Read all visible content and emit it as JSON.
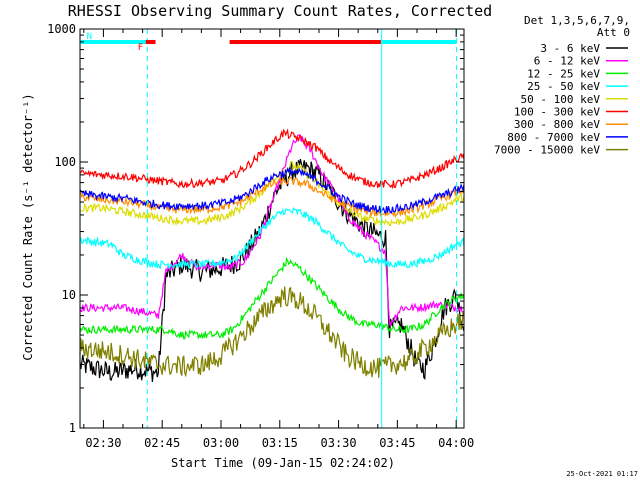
{
  "chart_data": {
    "type": "line",
    "title": "RHESSI Observing Summary Count Rates, Corrected",
    "xlabel": "Start Time (09-Jan-15 02:24:02)",
    "ylabel": "Corrected Count Rate (s⁻¹ detector⁻¹)",
    "yscale": "log",
    "xlim_minutes": [
      144.03,
      242.0
    ],
    "ylim": [
      1,
      1000
    ],
    "x_ticks": [
      {
        "t": 150,
        "label": "02:30"
      },
      {
        "t": 165,
        "label": "02:45"
      },
      {
        "t": 180,
        "label": "03:00"
      },
      {
        "t": 195,
        "label": "03:15"
      },
      {
        "t": 210,
        "label": "03:30"
      },
      {
        "t": 225,
        "label": "03:45"
      },
      {
        "t": 240,
        "label": "04:00"
      }
    ],
    "y_ticks": [
      {
        "v": 1,
        "label": "1"
      },
      {
        "v": 10,
        "label": "10"
      },
      {
        "v": 100,
        "label": "100"
      },
      {
        "v": 1000,
        "label": "1000"
      }
    ],
    "legend_header": [
      "Det 1,3,5,6,7,9,",
      "Att 0"
    ],
    "legend_position": "right",
    "series": [
      {
        "name": "3 - 6 keV",
        "color": "#000000",
        "points": [
          [
            144,
            3.0
          ],
          [
            152,
            2.6
          ],
          [
            158,
            2.8
          ],
          [
            164,
            2.6
          ],
          [
            166,
            14
          ],
          [
            170,
            17
          ],
          [
            175,
            15
          ],
          [
            180,
            16
          ],
          [
            185,
            18
          ],
          [
            190,
            30
          ],
          [
            194,
            60
          ],
          [
            198,
            85
          ],
          [
            202,
            90
          ],
          [
            205,
            80
          ],
          [
            208,
            60
          ],
          [
            212,
            42
          ],
          [
            216,
            33
          ],
          [
            220,
            28
          ],
          [
            222,
            27
          ],
          [
            223,
            5.5
          ],
          [
            226,
            6
          ],
          [
            230,
            3
          ],
          [
            232,
            2.8
          ],
          [
            234,
            4
          ],
          [
            237,
            8
          ],
          [
            240,
            10
          ],
          [
            242,
            5.5
          ]
        ]
      },
      {
        "name": "6 - 12 keV",
        "color": "#ff00ff",
        "points": [
          [
            144,
            8
          ],
          [
            150,
            8
          ],
          [
            155,
            8
          ],
          [
            160,
            7.5
          ],
          [
            164,
            7
          ],
          [
            166,
            15
          ],
          [
            170,
            20
          ],
          [
            174,
            16
          ],
          [
            178,
            17
          ],
          [
            182,
            16
          ],
          [
            186,
            18
          ],
          [
            190,
            28
          ],
          [
            194,
            60
          ],
          [
            198,
            130
          ],
          [
            200,
            155
          ],
          [
            203,
            120
          ],
          [
            206,
            80
          ],
          [
            209,
            60
          ],
          [
            212,
            40
          ],
          [
            216,
            30
          ],
          [
            220,
            24
          ],
          [
            222,
            21
          ],
          [
            223,
            6
          ],
          [
            226,
            8
          ],
          [
            230,
            8
          ],
          [
            235,
            8.5
          ],
          [
            240,
            8
          ],
          [
            242,
            8
          ]
        ]
      },
      {
        "name": "12 - 25 keV",
        "color": "#00ee00",
        "points": [
          [
            144,
            5.5
          ],
          [
            150,
            5.5
          ],
          [
            155,
            5.5
          ],
          [
            160,
            5.5
          ],
          [
            166,
            5.5
          ],
          [
            170,
            5
          ],
          [
            175,
            5
          ],
          [
            180,
            5
          ],
          [
            183,
            5.5
          ],
          [
            186,
            7
          ],
          [
            190,
            10
          ],
          [
            194,
            14
          ],
          [
            197,
            18
          ],
          [
            200,
            16
          ],
          [
            204,
            12
          ],
          [
            208,
            9
          ],
          [
            212,
            7
          ],
          [
            216,
            6
          ],
          [
            220,
            6
          ],
          [
            224,
            5.5
          ],
          [
            228,
            5.5
          ],
          [
            232,
            6
          ],
          [
            236,
            8
          ],
          [
            240,
            9.5
          ],
          [
            242,
            10
          ]
        ]
      },
      {
        "name": "25 - 50 keV",
        "color": "#00ffff",
        "points": [
          [
            144,
            26
          ],
          [
            148,
            25
          ],
          [
            152,
            24
          ],
          [
            155,
            20
          ],
          [
            160,
            18
          ],
          [
            164,
            17
          ],
          [
            170,
            17
          ],
          [
            176,
            17
          ],
          [
            180,
            17.5
          ],
          [
            184,
            19
          ],
          [
            188,
            26
          ],
          [
            192,
            35
          ],
          [
            196,
            43
          ],
          [
            200,
            42
          ],
          [
            204,
            36
          ],
          [
            208,
            28
          ],
          [
            212,
            22
          ],
          [
            216,
            19
          ],
          [
            220,
            18
          ],
          [
            224,
            17
          ],
          [
            228,
            17
          ],
          [
            232,
            18
          ],
          [
            236,
            20
          ],
          [
            240,
            24
          ],
          [
            242,
            25
          ]
        ]
      },
      {
        "name": "50 - 100 keV",
        "color": "#dddd00",
        "points": [
          [
            144,
            45
          ],
          [
            150,
            45
          ],
          [
            156,
            42
          ],
          [
            160,
            40
          ],
          [
            164,
            38
          ],
          [
            170,
            36
          ],
          [
            176,
            36
          ],
          [
            182,
            40
          ],
          [
            186,
            47
          ],
          [
            190,
            58
          ],
          [
            194,
            78
          ],
          [
            198,
            95
          ],
          [
            200,
            90
          ],
          [
            204,
            72
          ],
          [
            208,
            55
          ],
          [
            212,
            44
          ],
          [
            216,
            38
          ],
          [
            220,
            36
          ],
          [
            224,
            35
          ],
          [
            228,
            37
          ],
          [
            232,
            40
          ],
          [
            236,
            45
          ],
          [
            240,
            52
          ],
          [
            242,
            55
          ]
        ]
      },
      {
        "name": "100 - 300 keV",
        "color": "#ff0000",
        "points": [
          [
            144,
            82
          ],
          [
            150,
            80
          ],
          [
            156,
            78
          ],
          [
            160,
            75
          ],
          [
            164,
            72
          ],
          [
            170,
            68
          ],
          [
            176,
            70
          ],
          [
            180,
            72
          ],
          [
            184,
            82
          ],
          [
            188,
            100
          ],
          [
            192,
            130
          ],
          [
            196,
            165
          ],
          [
            200,
            150
          ],
          [
            204,
            130
          ],
          [
            208,
            100
          ],
          [
            212,
            82
          ],
          [
            216,
            72
          ],
          [
            220,
            68
          ],
          [
            224,
            68
          ],
          [
            228,
            72
          ],
          [
            232,
            80
          ],
          [
            236,
            90
          ],
          [
            240,
            105
          ],
          [
            242,
            110
          ]
        ]
      },
      {
        "name": "300 - 800 keV",
        "color": "#ff8c00",
        "points": [
          [
            144,
            55
          ],
          [
            150,
            52
          ],
          [
            156,
            50
          ],
          [
            160,
            48
          ],
          [
            166,
            44
          ],
          [
            170,
            44
          ],
          [
            176,
            44
          ],
          [
            182,
            47
          ],
          [
            186,
            52
          ],
          [
            190,
            62
          ],
          [
            194,
            70
          ],
          [
            198,
            72
          ],
          [
            202,
            68
          ],
          [
            206,
            58
          ],
          [
            210,
            50
          ],
          [
            214,
            45
          ],
          [
            218,
            42
          ],
          [
            222,
            41
          ],
          [
            226,
            42
          ],
          [
            230,
            45
          ],
          [
            234,
            50
          ],
          [
            238,
            56
          ],
          [
            242,
            62
          ]
        ]
      },
      {
        "name": "800 - 7000 keV",
        "color": "#0000ff",
        "points": [
          [
            144,
            58
          ],
          [
            150,
            55
          ],
          [
            156,
            53
          ],
          [
            160,
            50
          ],
          [
            166,
            47
          ],
          [
            170,
            47
          ],
          [
            176,
            47
          ],
          [
            182,
            50
          ],
          [
            186,
            56
          ],
          [
            190,
            68
          ],
          [
            194,
            80
          ],
          [
            198,
            85
          ],
          [
            202,
            80
          ],
          [
            206,
            68
          ],
          [
            210,
            55
          ],
          [
            214,
            48
          ],
          [
            218,
            45
          ],
          [
            222,
            44
          ],
          [
            226,
            45
          ],
          [
            230,
            48
          ],
          [
            234,
            53
          ],
          [
            238,
            58
          ],
          [
            242,
            65
          ]
        ]
      },
      {
        "name": "7000 - 15000 keV",
        "color": "#808000",
        "points": [
          [
            144,
            4
          ],
          [
            150,
            3.8
          ],
          [
            156,
            3.5
          ],
          [
            160,
            3.2
          ],
          [
            164,
            3
          ],
          [
            170,
            2.9
          ],
          [
            176,
            3
          ],
          [
            180,
            3.5
          ],
          [
            184,
            4.5
          ],
          [
            188,
            6
          ],
          [
            192,
            8
          ],
          [
            196,
            10
          ],
          [
            200,
            9
          ],
          [
            204,
            7
          ],
          [
            208,
            5
          ],
          [
            212,
            3.5
          ],
          [
            216,
            3
          ],
          [
            220,
            2.8
          ],
          [
            224,
            3
          ],
          [
            228,
            3.2
          ],
          [
            232,
            4
          ],
          [
            236,
            5
          ],
          [
            240,
            6
          ],
          [
            242,
            6.5
          ]
        ]
      }
    ],
    "flags": [
      {
        "label": "N",
        "color": "#00ffff",
        "from": 144.2,
        "to": 161.2
      },
      {
        "label": "F",
        "color": "#ff0000",
        "from": 160.8,
        "to": 163.3
      },
      {
        "label": "",
        "color": "#ff0000",
        "from": 182.2,
        "to": 220.8
      },
      {
        "label": "",
        "color": "#00ffff",
        "from": 220.9,
        "to": 240.1
      }
    ],
    "vlines": [
      {
        "t": 144.05,
        "color": "#00ffff",
        "style": "solid"
      },
      {
        "t": 161.2,
        "color": "#00ffff",
        "style": "dashed"
      },
      {
        "t": 221.0,
        "color": "#00ffff",
        "style": "solid"
      },
      {
        "t": 240.1,
        "color": "#00ffff",
        "style": "dashed"
      }
    ],
    "footer_timestamp": "25-Oct-2021 01:17"
  }
}
